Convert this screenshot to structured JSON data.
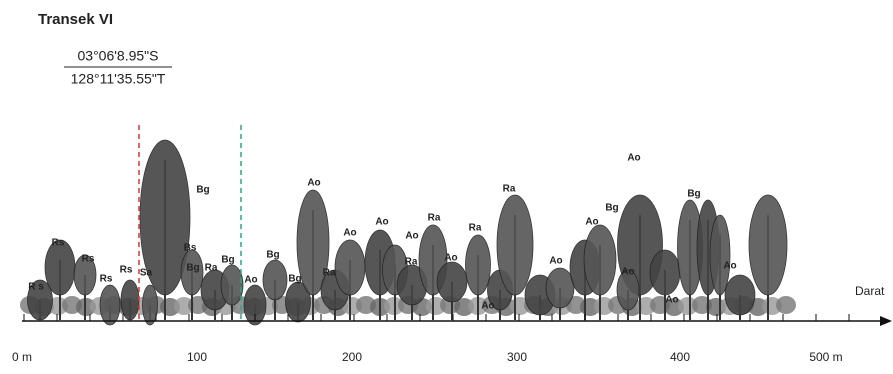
{
  "header": {
    "title": "Transek VI",
    "latitude": "03°06'8.95\"S",
    "longitude": "128°11'35.55\"T"
  },
  "labels": [
    "Rs",
    "Rs",
    "R s",
    "Rs",
    "Rs",
    "Sa",
    "Bg",
    "Bs",
    "Bg",
    "Ra",
    "Bg",
    "Ao",
    "Bg",
    "Bg",
    "Ao",
    "Ra",
    "Ao",
    "Ao",
    "Ra",
    "Ao",
    "Ra",
    "Ao",
    "Ra",
    "Ao",
    "Ra",
    "Ao",
    "Ao",
    "Bg",
    "Ao",
    "Ao",
    "Ao",
    "Bg",
    "Ao"
  ],
  "axis": {
    "ticks": [
      "0 m",
      "100",
      "200",
      "300",
      "400",
      "500 m"
    ],
    "end_label": "Darat"
  }
}
